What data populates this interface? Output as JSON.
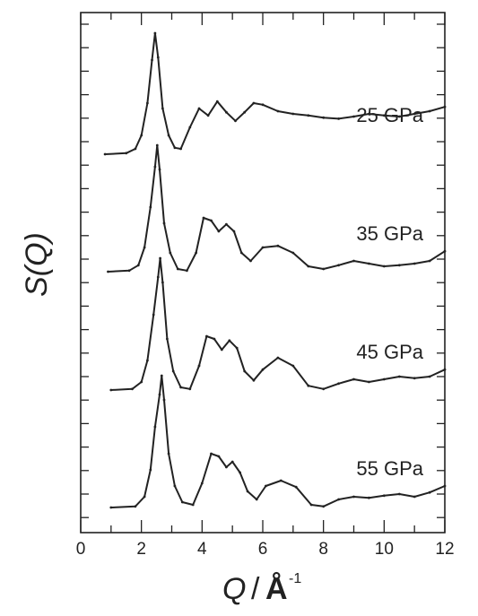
{
  "chart_data": {
    "type": "line",
    "xlabel": {
      "main": "Q",
      "sep": "/",
      "unit": "Å",
      "exp": "-1"
    },
    "ylabel": "S(Q)",
    "xlim": [
      0,
      12
    ],
    "x_ticks": [
      "0",
      "2",
      "4",
      "6",
      "8",
      "10",
      "12"
    ],
    "y_ticks_labelled": false,
    "series": [
      {
        "name": "25 GPa",
        "x": [
          0.8,
          1.5,
          1.8,
          2.0,
          2.2,
          2.35,
          2.45,
          2.55,
          2.7,
          2.9,
          3.1,
          3.3,
          3.6,
          3.9,
          4.2,
          4.5,
          4.8,
          5.1,
          5.4,
          5.7,
          6.0,
          6.5,
          7.0,
          7.5,
          8.0,
          8.5,
          9.0,
          9.5,
          10.0,
          10.5,
          11.0,
          11.5,
          12.0
        ],
        "y": [
          0.0,
          0.02,
          0.1,
          0.35,
          0.95,
          1.75,
          2.25,
          1.8,
          0.85,
          0.35,
          0.12,
          0.1,
          0.5,
          0.85,
          0.72,
          0.98,
          0.78,
          0.62,
          0.78,
          0.95,
          0.92,
          0.8,
          0.75,
          0.72,
          0.68,
          0.66,
          0.7,
          0.75,
          0.72,
          0.7,
          0.75,
          0.8,
          0.88
        ]
      },
      {
        "name": "35 GPa",
        "x": [
          0.9,
          1.6,
          1.9,
          2.1,
          2.3,
          2.45,
          2.52,
          2.6,
          2.75,
          2.95,
          3.2,
          3.5,
          3.8,
          4.05,
          4.3,
          4.55,
          4.8,
          5.05,
          5.3,
          5.6,
          6.0,
          6.5,
          7.0,
          7.5,
          8.0,
          8.5,
          9.0,
          9.5,
          10.0,
          10.5,
          11.0,
          11.5,
          12.0
        ],
        "y": [
          0.0,
          0.02,
          0.12,
          0.45,
          1.2,
          1.95,
          2.35,
          1.9,
          0.9,
          0.35,
          0.05,
          0.02,
          0.35,
          1.0,
          0.95,
          0.75,
          0.88,
          0.75,
          0.35,
          0.2,
          0.45,
          0.48,
          0.35,
          0.1,
          0.05,
          0.12,
          0.2,
          0.15,
          0.1,
          0.12,
          0.15,
          0.2,
          0.38
        ]
      },
      {
        "name": "45 GPa",
        "x": [
          1.0,
          1.7,
          2.0,
          2.2,
          2.4,
          2.55,
          2.62,
          2.7,
          2.85,
          3.05,
          3.3,
          3.6,
          3.9,
          4.15,
          4.4,
          4.65,
          4.9,
          5.15,
          5.4,
          5.7,
          6.0,
          6.5,
          7.0,
          7.5,
          8.0,
          8.5,
          9.0,
          9.5,
          10.0,
          10.5,
          11.0,
          11.5,
          12.0
        ],
        "y": [
          0.0,
          0.02,
          0.15,
          0.55,
          1.4,
          2.1,
          2.45,
          2.0,
          0.95,
          0.35,
          0.05,
          0.02,
          0.45,
          1.0,
          0.95,
          0.75,
          0.92,
          0.78,
          0.35,
          0.18,
          0.38,
          0.6,
          0.45,
          0.08,
          0.02,
          0.12,
          0.2,
          0.15,
          0.2,
          0.25,
          0.22,
          0.25,
          0.38
        ]
      },
      {
        "name": "55 GPa",
        "x": [
          1.0,
          1.8,
          2.1,
          2.3,
          2.45,
          2.6,
          2.67,
          2.75,
          2.9,
          3.1,
          3.35,
          3.7,
          4.0,
          4.3,
          4.55,
          4.8,
          5.0,
          5.25,
          5.5,
          5.8,
          6.1,
          6.6,
          7.1,
          7.6,
          8.0,
          8.5,
          9.0,
          9.5,
          10.0,
          10.5,
          11.0,
          11.5,
          12.0
        ],
        "y": [
          0.0,
          0.02,
          0.2,
          0.7,
          1.5,
          2.1,
          2.45,
          2.0,
          1.0,
          0.4,
          0.1,
          0.05,
          0.45,
          1.0,
          0.95,
          0.75,
          0.85,
          0.65,
          0.3,
          0.15,
          0.4,
          0.5,
          0.38,
          0.05,
          0.02,
          0.15,
          0.2,
          0.18,
          0.22,
          0.25,
          0.2,
          0.28,
          0.4
        ]
      }
    ]
  }
}
